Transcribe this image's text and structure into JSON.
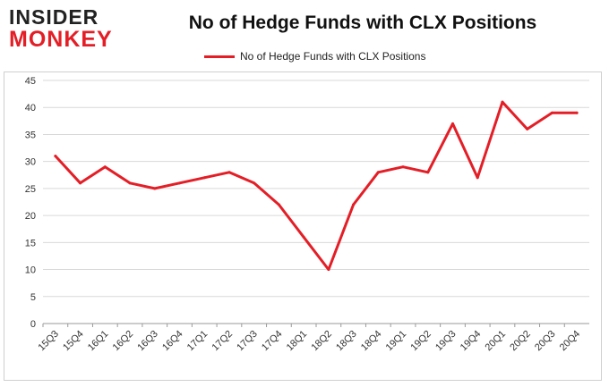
{
  "header": {
    "logo_line1": "INSIDER",
    "logo_line2": "MONKEY",
    "title": "No of Hedge Funds with CLX Positions"
  },
  "chart_data": {
    "type": "line",
    "title": "No of Hedge Funds with CLX Positions",
    "xlabel": "",
    "ylabel": "",
    "ylim": [
      0,
      45
    ],
    "yticks": [
      0,
      5,
      10,
      15,
      20,
      25,
      30,
      35,
      40,
      45
    ],
    "grid": true,
    "legend_position": "top-center",
    "categories": [
      "15Q3",
      "15Q4",
      "16Q1",
      "16Q2",
      "16Q3",
      "16Q4",
      "17Q1",
      "17Q2",
      "17Q3",
      "17Q4",
      "18Q1",
      "18Q2",
      "18Q3",
      "18Q4",
      "19Q1",
      "19Q2",
      "19Q3",
      "19Q4",
      "20Q1",
      "20Q2",
      "20Q3",
      "20Q4"
    ],
    "series": [
      {
        "name": "No of Hedge Funds with CLX Positions",
        "color": "#e41e26",
        "values": [
          31,
          26,
          29,
          26,
          25,
          26,
          27,
          28,
          26,
          22,
          16,
          10,
          22,
          28,
          29,
          28,
          37,
          27,
          41,
          36,
          39,
          39
        ]
      }
    ]
  }
}
